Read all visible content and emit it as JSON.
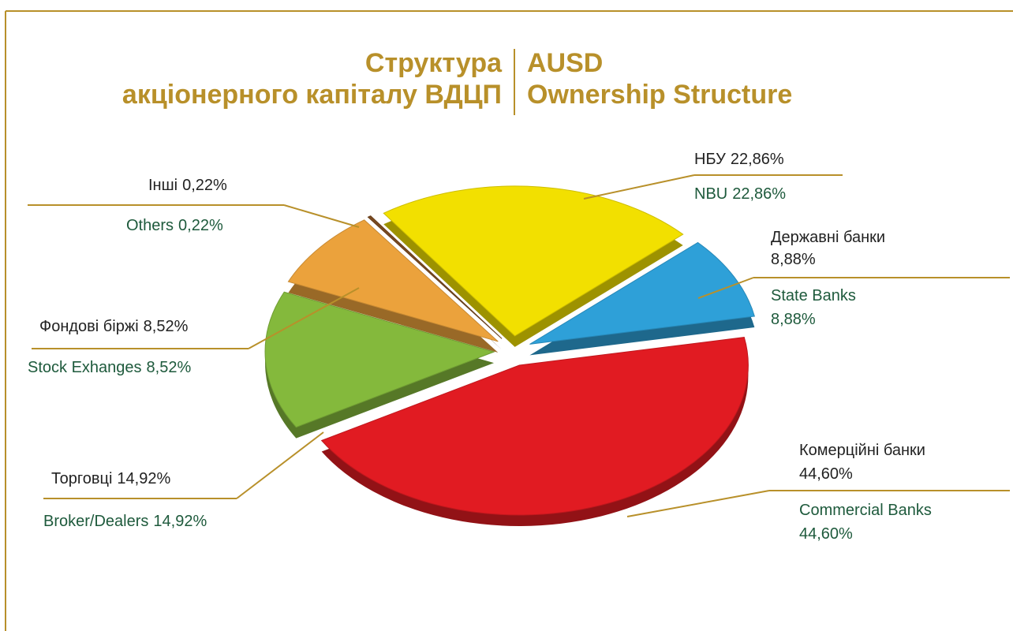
{
  "chart_data": {
    "type": "pie",
    "title_uk": [
      "Структура",
      "акціонерного капіталу ВДЦП"
    ],
    "title_en": [
      "AUSD",
      "Ownership Structure"
    ],
    "categories": [
      "НБУ",
      "Державні банки",
      "Комерційні банки",
      "Торговці",
      "Фондові біржі",
      "Інші"
    ],
    "categories_en": [
      "NBU",
      "State Banks",
      "Commercial Banks",
      "Broker/Dealers",
      "Stock Exhanges",
      "Others"
    ],
    "values": [
      22.86,
      8.88,
      44.6,
      14.92,
      8.52,
      0.22
    ],
    "value_labels": [
      "22,86%",
      "8,88%",
      "44,60%",
      "14,92%",
      "8,52%",
      "0,22%"
    ],
    "colors": [
      "#f2e000",
      "#2ea0d8",
      "#e11b22",
      "#84b93c",
      "#eba23c",
      "#7a4a20"
    ]
  }
}
